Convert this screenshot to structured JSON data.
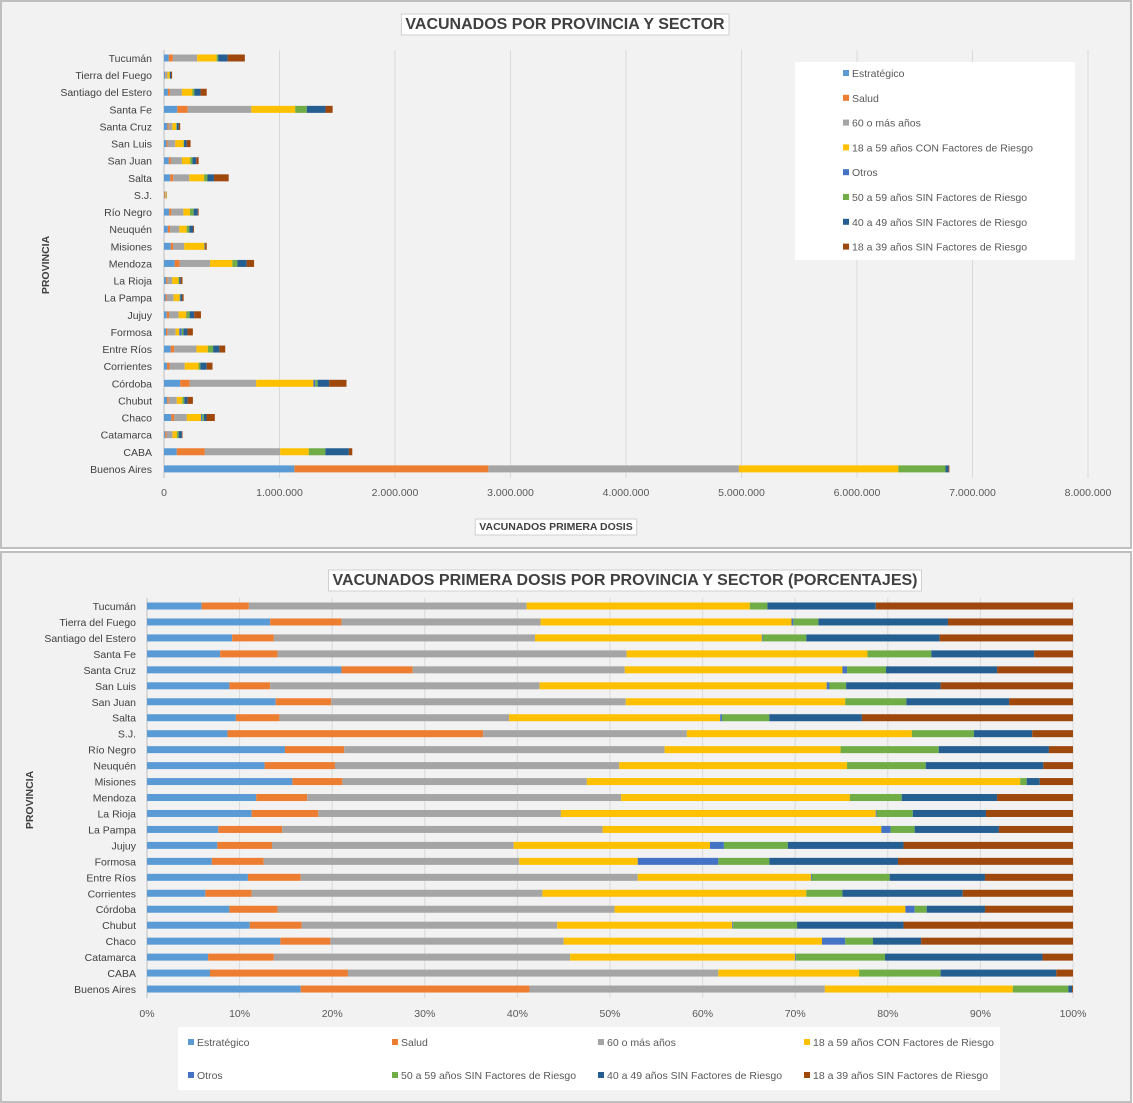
{
  "series_names": [
    "Estratégico",
    "Salud",
    "60 o más años",
    "18 a 59 años CON Factores de Riesgo",
    "Otros",
    "50 a 59 años SIN Factores de Riesgo",
    "40 a 49 años SIN Factores de Riesgo",
    "18 a 39 años SIN Factores de Riesgo"
  ],
  "colors": [
    "#5b9bd5",
    "#ed7d31",
    "#a5a5a5",
    "#ffc000",
    "#4472c4",
    "#70ad47",
    "#255e91",
    "#9e480e"
  ],
  "chart_data": [
    {
      "type": "bar",
      "stacked": true,
      "orientation": "horizontal",
      "title": "VACUNADOS POR PROVINCIA Y SECTOR",
      "xlabel": "VACUNADOS PRIMERA  DOSIS",
      "ylabel": "PROVINCIA",
      "xlim": [
        0,
        8000000
      ],
      "xticks": [
        "0",
        "1.000.000",
        "2.000.000",
        "3.000.000",
        "4.000.000",
        "5.000.000",
        "6.000.000",
        "7.000.000",
        "8.000.000"
      ],
      "legend": "right",
      "note": "segment values = totals × share percentages in chart 2",
      "totals": [
        700000,
        70000,
        370000,
        1460000,
        140000,
        230000,
        300000,
        560000,
        26000,
        300000,
        260000,
        370000,
        780000,
        160000,
        170000,
        320000,
        250000,
        530000,
        420000,
        1580000,
        250000,
        440000,
        160000,
        1630000,
        6800000
      ]
    },
    {
      "type": "bar",
      "stacked": true,
      "orientation": "horizontal",
      "title": "VACUNADOS PRIMERA DOSIS POR PROVINCIA Y SECTOR (PORCENTAJES)",
      "ylabel": "PROVINCIA",
      "xlim": [
        0,
        100
      ],
      "xticks": [
        "0%",
        "10%",
        "20%",
        "30%",
        "40%",
        "50%",
        "60%",
        "70%",
        "80%",
        "90%",
        "100%"
      ],
      "legend": "bottom",
      "categories": [
        "Tucumán",
        "Tierra del Fuego",
        "Santiago del Estero",
        "Santa Fe",
        "Santa Cruz",
        "San Luis",
        "San Juan",
        "Salta",
        "S.J.",
        "Río Negro",
        "Neuquén",
        "Misiones",
        "Mendoza",
        "La Rioja",
        "La Pampa",
        "Jujuy",
        "Formosa",
        "Entre Ríos",
        "Corrientes",
        "Córdoba",
        "Chubut",
        "Chaco",
        "Catamarca",
        "CABA",
        "Buenos Aires"
      ],
      "percent": [
        [
          5.9,
          5.1,
          30.0,
          24.1,
          0,
          1.9,
          11.7,
          21.3
        ],
        [
          13.3,
          7.7,
          21.5,
          27.1,
          0.2,
          2.7,
          14.0,
          13.5
        ],
        [
          9.2,
          4.5,
          28.2,
          24.5,
          0.1,
          4.7,
          14.4,
          14.4
        ],
        [
          7.9,
          6.2,
          37.7,
          26.0,
          0,
          6.9,
          11.1,
          4.2
        ],
        [
          21.0,
          7.7,
          22.9,
          23.5,
          0.5,
          4.2,
          12.0,
          8.2
        ],
        [
          8.9,
          4.4,
          29.1,
          31.0,
          0.3,
          1.8,
          10.2,
          14.3
        ],
        [
          13.9,
          6.0,
          31.8,
          23.7,
          0,
          6.6,
          11.1,
          6.9
        ],
        [
          9.6,
          4.7,
          24.8,
          22.8,
          0.2,
          5.1,
          10.0,
          22.8
        ],
        [
          8.7,
          27.6,
          22.0,
          24.3,
          0,
          6.7,
          6.3,
          4.4
        ],
        [
          14.9,
          6.4,
          34.6,
          19.0,
          0,
          10.6,
          11.9,
          2.6
        ],
        [
          12.7,
          7.6,
          30.7,
          24.6,
          0,
          8.5,
          12.7,
          3.2
        ],
        [
          15.7,
          5.4,
          26.4,
          46.8,
          0,
          0.7,
          1.4,
          3.6
        ],
        [
          11.8,
          5.5,
          33.9,
          24.7,
          0,
          5.6,
          10.3,
          8.2
        ],
        [
          11.3,
          7.2,
          26.2,
          34.0,
          0.1,
          3.9,
          7.9,
          9.4
        ],
        [
          7.7,
          6.9,
          34.6,
          30.1,
          1.0,
          2.6,
          9.1,
          8.0
        ],
        [
          7.6,
          5.9,
          26.1,
          21.2,
          1.5,
          6.9,
          12.5,
          18.3
        ],
        [
          7.0,
          5.6,
          27.6,
          12.8,
          8.7,
          5.5,
          13.9,
          18.9
        ],
        [
          10.9,
          5.7,
          36.4,
          18.7,
          0.1,
          8.4,
          10.3,
          9.5
        ],
        [
          6.3,
          5.0,
          31.4,
          28.5,
          0,
          3.9,
          13.0,
          11.9
        ],
        [
          8.9,
          5.2,
          36.4,
          31.4,
          1.0,
          1.3,
          6.3,
          9.5
        ],
        [
          11.1,
          5.6,
          27.6,
          18.9,
          0.1,
          6.9,
          11.5,
          18.3
        ],
        [
          14.4,
          5.4,
          25.2,
          27.9,
          2.5,
          3.0,
          5.2,
          16.4
        ],
        [
          6.6,
          7.1,
          32.0,
          24.3,
          0.1,
          9.6,
          17.0,
          3.3
        ],
        [
          6.8,
          14.9,
          40.0,
          15.2,
          0,
          8.8,
          12.5,
          1.8
        ],
        [
          16.6,
          24.7,
          31.9,
          20.3,
          0,
          6.0,
          0.4,
          0.1
        ]
      ]
    }
  ]
}
